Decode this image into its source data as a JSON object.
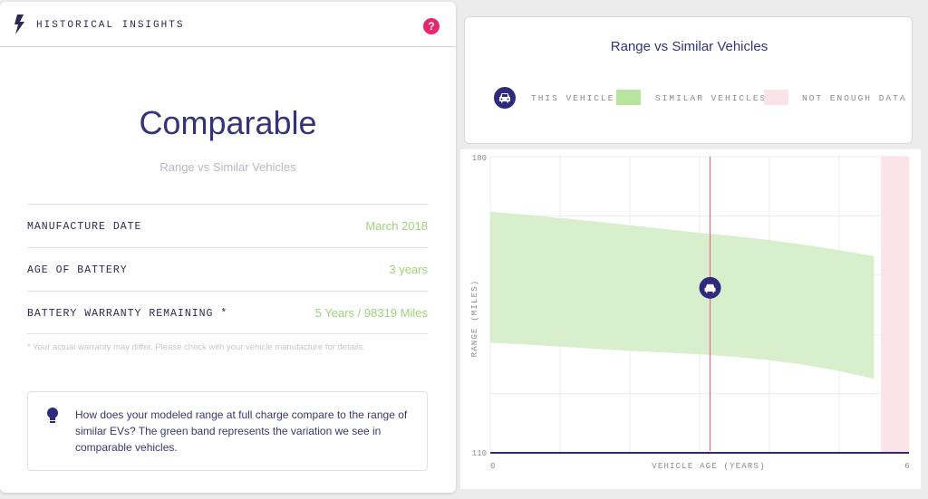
{
  "header": {
    "title": "HISTORICAL INSIGHTS",
    "help_label": "?"
  },
  "summary": {
    "status": "Comparable",
    "subtitle": "Range vs Similar Vehicles"
  },
  "details": [
    {
      "label": "MANUFACTURE DATE",
      "value": "March 2018"
    },
    {
      "label": "AGE OF BATTERY",
      "value": "3 years"
    },
    {
      "label": "BATTERY WARRANTY REMAINING *",
      "value": "5 Years / 98319 Miles"
    }
  ],
  "note": "* Your actual warranty may differ. Please check with your vehicle manufacture for details.",
  "tip": "How does your modeled range at full charge compare to the range of similar EVs? The green band represents the variation we see in comparable vehicles.",
  "legend": {
    "title": "Range vs Similar Vehicles",
    "this_vehicle": "THIS VEHICLE",
    "similar_vehicles": "SIMILAR VEHICLES",
    "not_enough_data": "NOT ENOUGH DATA"
  },
  "colors": {
    "accent": "#2e2a7e",
    "band": "#b7e59f",
    "no_data": "#fbe3ea",
    "marker_line": "#e56a86",
    "help": "#e7266b"
  },
  "icons": {
    "header": "bolt-icon",
    "help": "help-icon",
    "tip": "lightbulb-icon",
    "vehicle": "car-icon"
  },
  "chart_data": {
    "type": "area",
    "xlabel": "VEHICLE AGE (YEARS)",
    "ylabel": "RANGE (MILES)",
    "xlim": [
      0,
      6
    ],
    "ylim": [
      110,
      180
    ],
    "x_ticks": [
      "0",
      "6"
    ],
    "y_ticks": [
      "110",
      "180"
    ],
    "band": {
      "name": "SIMILAR VEHICLES",
      "x": [
        0,
        0.5,
        1,
        1.5,
        2,
        2.5,
        3,
        3.5,
        4,
        4.5,
        5,
        5.5
      ],
      "upper": [
        167,
        166.3,
        165.5,
        164.7,
        163.8,
        162.9,
        162,
        161.2,
        160.3,
        159.2,
        157.9,
        156.5
      ],
      "lower": [
        136,
        135.6,
        135.1,
        134.6,
        134.1,
        133.7,
        133.3,
        132.7,
        131.9,
        130.8,
        129.3,
        127.5
      ]
    },
    "no_data_from_x": 5.6,
    "this_vehicle": {
      "x": 3.15,
      "y": 149
    }
  }
}
